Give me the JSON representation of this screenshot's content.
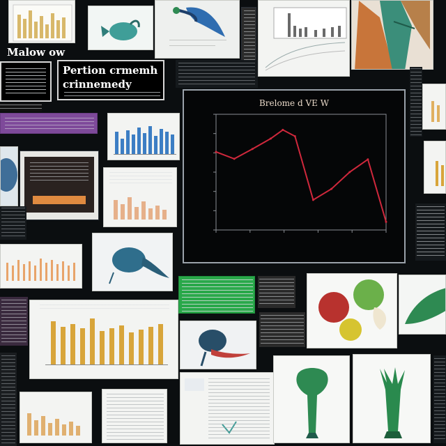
{
  "collage": {
    "heading_left": "Malow ow",
    "heading_center_line1": "Pertion crmemh",
    "heading_center_line2": "crinnemedy"
  },
  "main_chart": {
    "accent": "#d0283c",
    "title": "Brelome d VE W"
  },
  "chart_data": {
    "type": "line",
    "title": "Brelome d VE W",
    "xlabel": "",
    "ylabel": "",
    "ylim": [
      0,
      200
    ],
    "series": [
      {
        "values": [
          135,
          123,
          140,
          158,
          173,
          162,
          52,
          71,
          100,
          122,
          14
        ]
      }
    ],
    "x": [
      0,
      0.6,
      1.2,
      1.8,
      2.2,
      2.6,
      3.2,
      3.8,
      4.4,
      5.0,
      5.6
    ],
    "grid": false
  },
  "colors": {
    "background": "#0b0e10",
    "bar_gold": "#d8a53a",
    "bar_blue": "#3c7ec4",
    "bar_orange": "#e0a070",
    "plant_green": "#2e8a52",
    "purple_band": "#7e4a9a",
    "green_sheet": "#29a84a"
  },
  "icons": [
    "fish-illustration",
    "apple-illustration",
    "pear-illustration",
    "tree-illustration",
    "feather-illustration"
  ]
}
